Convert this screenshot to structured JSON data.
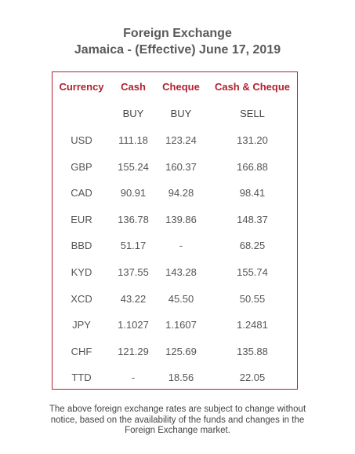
{
  "title": {
    "line1": "Foreign Exchange",
    "line2": "Jamaica - (Effective) June 17, 2019"
  },
  "colors": {
    "accent": "#b0222e",
    "text": "#555555"
  },
  "table": {
    "headers": [
      "Currency",
      "Cash",
      "Cheque",
      "Cash & Cheque"
    ],
    "subheaders": [
      "",
      "BUY",
      "BUY",
      "SELL"
    ],
    "rows": [
      [
        "USD",
        "111.18",
        "123.24",
        "131.20"
      ],
      [
        "GBP",
        "155.24",
        "160.37",
        "166.88"
      ],
      [
        "CAD",
        "90.91",
        "94.28",
        "98.41"
      ],
      [
        "EUR",
        "136.78",
        "139.86",
        "148.37"
      ],
      [
        "BBD",
        "51.17",
        "-",
        "68.25"
      ],
      [
        "KYD",
        "137.55",
        "143.28",
        "155.74"
      ],
      [
        "XCD",
        "43.22",
        "45.50",
        "50.55"
      ],
      [
        "JPY",
        "1.1027",
        "1.1607",
        "1.2481"
      ],
      [
        "CHF",
        "121.29",
        "125.69",
        "135.88"
      ],
      [
        "TTD",
        "-",
        "18.56",
        "22.05"
      ]
    ]
  },
  "footer": {
    "line1": "The above foreign exchange rates are subject to change without",
    "line2": "notice, based on the availability of the funds and changes in the",
    "line3": "Foreign Exchange market."
  }
}
